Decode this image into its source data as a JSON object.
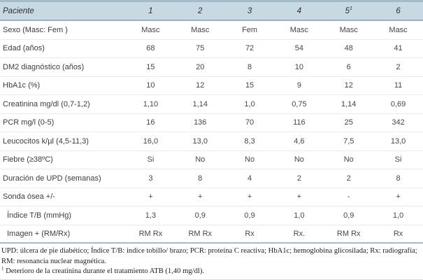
{
  "table": {
    "header": {
      "label": "Paciente",
      "columns": [
        {
          "label": "1",
          "sup": ""
        },
        {
          "label": "2",
          "sup": ""
        },
        {
          "label": "3",
          "sup": ""
        },
        {
          "label": "4",
          "sup": ""
        },
        {
          "label": "5",
          "sup": "1"
        },
        {
          "label": "6",
          "sup": ""
        }
      ]
    },
    "rows": [
      {
        "label": "Sexo (Masc: Fem )",
        "indent": false,
        "values": [
          "Masc",
          "Masc",
          "Fem",
          "Masc",
          "Masc",
          "Masc"
        ]
      },
      {
        "label": "Edad (años)",
        "indent": false,
        "values": [
          "68",
          "75",
          "72",
          "54",
          "48",
          "41"
        ]
      },
      {
        "label": "DM2 diagnóstico (años)",
        "indent": false,
        "values": [
          "15",
          "20",
          "8",
          "10",
          "6",
          "2"
        ]
      },
      {
        "label": "HbA1c (%)",
        "indent": false,
        "values": [
          "10",
          "12",
          "15",
          "9",
          "12",
          "11"
        ]
      },
      {
        "label": "Creatinina mg/dl (0,7-1,2)",
        "indent": false,
        "values": [
          "1,10",
          "1,14",
          "1,0",
          "0,75",
          "1,14",
          "0,69"
        ]
      },
      {
        "label": "PCR mg/l (0-5)",
        "indent": false,
        "values": [
          "16",
          "136",
          "70",
          "116",
          "25",
          "342"
        ]
      },
      {
        "label": "Leucocitos k/µl (4,5-11,3)",
        "indent": false,
        "values": [
          "16,0",
          "13,0",
          "8,3",
          "4,6",
          "7,5",
          "13,0"
        ]
      },
      {
        "label": "Fiebre (≥38ºC)",
        "indent": false,
        "values": [
          "Si",
          "No",
          "No",
          "No",
          "No",
          "Si"
        ]
      },
      {
        "label": "Duración de UPD (semanas)",
        "indent": false,
        "values": [
          "3",
          "8",
          "4",
          "2",
          "2",
          "8"
        ]
      },
      {
        "label": "Sonda ósea +/-",
        "indent": false,
        "values": [
          "+",
          "+",
          "+",
          "+",
          "-",
          "+"
        ]
      },
      {
        "label": "Índice T/B (mmHg)",
        "indent": true,
        "values": [
          "1,3",
          "0,9",
          "0,9",
          "1,0",
          "0,9",
          "1,0"
        ]
      },
      {
        "label": "Imagen + (RM/Rx)",
        "indent": true,
        "values": [
          "RM Rx",
          "RM Rx",
          "Rx",
          "Rx.",
          "RM Rx",
          "Rx"
        ]
      }
    ],
    "footnotes": [
      {
        "marker": "",
        "text": "UPD: úlcera de pie diabético; Índice T/B: indice tobillo/ brazo; PCR: proteína C reactiva; HbA1c; hemoglobina glicosilada; Rx: radiografía; RM: resonancia nuclear magnética."
      },
      {
        "marker": "1",
        "text": " Deterioro de la creatinina durante el tratamiento ATB (1,40 mg/dl)."
      }
    ],
    "colors": {
      "header_bg": "#c7dae4",
      "header_border": "#9cb3bf",
      "top_border": "#a5bcc8",
      "row_divider": "#ececec",
      "body_text": "#3c3c3c"
    }
  }
}
